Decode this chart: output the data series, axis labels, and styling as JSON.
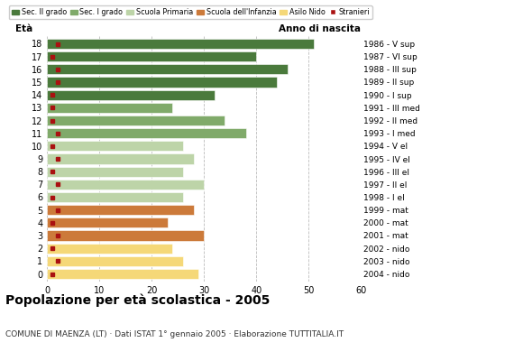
{
  "ages": [
    18,
    17,
    16,
    15,
    14,
    13,
    12,
    11,
    10,
    9,
    8,
    7,
    6,
    5,
    4,
    3,
    2,
    1,
    0
  ],
  "years": [
    "1986 - V sup",
    "1987 - VI sup",
    "1988 - III sup",
    "1989 - II sup",
    "1990 - I sup",
    "1991 - III med",
    "1992 - II med",
    "1993 - I med",
    "1994 - V el",
    "1995 - IV el",
    "1996 - III el",
    "1997 - II el",
    "1998 - I el",
    "1999 - mat",
    "2000 - mat",
    "2001 - mat",
    "2002 - nido",
    "2003 - nido",
    "2004 - nido"
  ],
  "values": [
    51,
    40,
    46,
    44,
    32,
    24,
    34,
    38,
    26,
    28,
    26,
    30,
    26,
    28,
    23,
    30,
    24,
    26,
    29
  ],
  "stranieri": [
    2,
    1,
    2,
    2,
    1,
    1,
    1,
    2,
    1,
    2,
    1,
    2,
    1,
    2,
    1,
    2,
    1,
    2,
    1
  ],
  "colors": {
    "sec2": "#4a7a3c",
    "sec1": "#80aa6a",
    "primaria": "#bdd4a8",
    "infanzia": "#cc7a3a",
    "asilo": "#f5d878",
    "stranieri": "#aa1111"
  },
  "category_ranges": {
    "sec2": [
      14,
      18
    ],
    "sec1": [
      11,
      13
    ],
    "primaria": [
      6,
      10
    ],
    "infanzia": [
      3,
      5
    ],
    "asilo": [
      0,
      2
    ]
  },
  "legend_labels": [
    "Sec. II grado",
    "Sec. I grado",
    "Scuola Primaria",
    "Scuola dell'Infanzia",
    "Asilo Nido",
    "Stranieri"
  ],
  "title": "Popolazione per età scolastica - 2005",
  "subtitle": "COMUNE DI MAENZA (LT) · Dati ISTAT 1° gennaio 2005 · Elaborazione TUTTITALIA.IT",
  "xlabel_eta": "Età",
  "xlabel_anno": "Anno di nascita",
  "xlim": [
    0,
    60
  ],
  "xticks": [
    0,
    10,
    20,
    30,
    40,
    50,
    60
  ],
  "bg_color": "#ffffff",
  "grid_color": "#bbbbbb",
  "bar_height": 0.78
}
